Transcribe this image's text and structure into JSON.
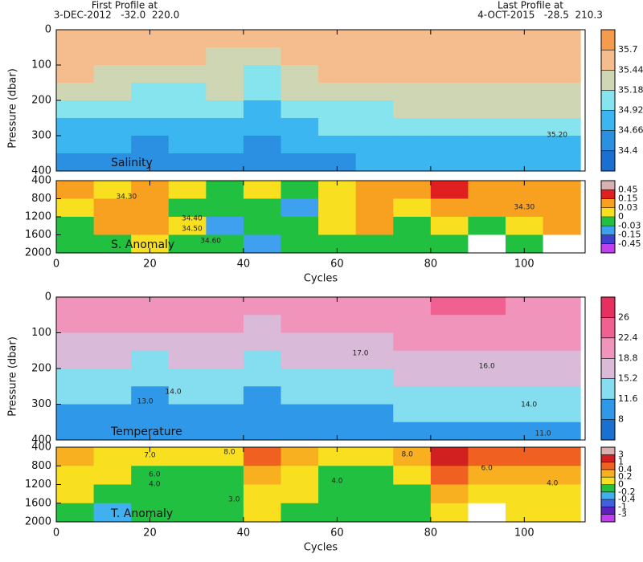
{
  "header": {
    "first_title": "First Profile at",
    "first_info": "3-DEC-2012   -32.0  220.0",
    "last_title": "Last Profile at",
    "last_info": "4-OCT-2015   -28.5  210.3"
  },
  "chart_data": [
    {
      "type": "heatmap",
      "label": "Salinity",
      "ylabel": "Pressure (dbar)",
      "x": [
        4,
        12,
        20,
        28,
        36,
        44,
        52,
        60,
        68,
        76,
        84,
        92,
        100,
        108
      ],
      "y": [
        25,
        75,
        125,
        175,
        225,
        275,
        325,
        375
      ],
      "z": [
        [
          35.55,
          35.5,
          35.45,
          35.3,
          35.1,
          34.9,
          34.75,
          34.6
        ],
        [
          35.6,
          35.55,
          35.4,
          35.2,
          35.0,
          34.85,
          34.7,
          34.6
        ],
        [
          35.6,
          35.5,
          35.35,
          35.15,
          34.95,
          34.8,
          34.65,
          34.55
        ],
        [
          35.55,
          35.45,
          35.3,
          35.15,
          35.0,
          34.85,
          34.7,
          34.6
        ],
        [
          35.5,
          35.4,
          35.3,
          35.2,
          35.05,
          34.9,
          34.75,
          34.65
        ],
        [
          35.45,
          35.3,
          35.1,
          34.95,
          34.8,
          34.7,
          34.6,
          34.5
        ],
        [
          35.6,
          35.5,
          35.4,
          35.2,
          35.0,
          34.85,
          34.7,
          34.6
        ],
        [
          35.6,
          35.55,
          35.45,
          35.3,
          35.1,
          34.95,
          34.8,
          34.65
        ],
        [
          35.55,
          35.5,
          35.45,
          35.3,
          35.15,
          34.95,
          34.8,
          34.7
        ],
        [
          35.6,
          35.55,
          35.5,
          35.35,
          35.2,
          35.0,
          34.85,
          34.7
        ],
        [
          35.65,
          35.6,
          35.5,
          35.4,
          35.2,
          35.05,
          34.9,
          34.75
        ],
        [
          35.6,
          35.55,
          35.5,
          35.4,
          35.25,
          35.1,
          34.9,
          34.75
        ],
        [
          35.55,
          35.5,
          35.5,
          35.4,
          35.25,
          35.05,
          34.9,
          34.75
        ],
        [
          35.55,
          35.5,
          35.45,
          35.35,
          35.2,
          35.05,
          34.9,
          34.8
        ]
      ],
      "xlim": [
        0,
        113
      ],
      "xticks": [
        0,
        20,
        40,
        60,
        80,
        100
      ],
      "ylim": [
        0,
        400
      ],
      "yticks": [
        0,
        100,
        200,
        300,
        400
      ],
      "colorbar": {
        "ticks": [
          34.4,
          34.66,
          34.92,
          35.18,
          35.44,
          35.7
        ],
        "colors": [
          "#1c6fd2",
          "#2b8fe2",
          "#3cb6f0",
          "#86e4ef",
          "#cfd6b4",
          "#f5bd8e",
          "#f59c4c"
        ]
      },
      "annotations": [
        {
          "text": "35.20",
          "x": 107,
          "y": 298
        }
      ]
    },
    {
      "type": "heatmap",
      "label": "S. Anomaly",
      "xlabel": "Cycles",
      "x": [
        4,
        12,
        20,
        28,
        36,
        44,
        52,
        60,
        68,
        76,
        84,
        92,
        100,
        108
      ],
      "y": [
        600,
        1000,
        1400,
        1800
      ],
      "z": [
        [
          0.03,
          0.01,
          -0.02,
          -0.01
        ],
        [
          0.02,
          0.05,
          0.04,
          -0.02
        ],
        [
          0.04,
          0.08,
          0.06,
          0.01
        ],
        [
          0.01,
          -0.01,
          0.02,
          -0.02
        ],
        [
          -0.01,
          -0.02,
          -0.04,
          -0.02
        ],
        [
          0.02,
          -0.01,
          -0.02,
          -0.04
        ],
        [
          -0.02,
          -0.04,
          -0.02,
          -0.03
        ],
        [
          0.01,
          0.02,
          0.01,
          -0.01
        ],
        [
          0.03,
          0.05,
          0.06,
          -0.01
        ],
        [
          0.04,
          0.02,
          -0.01,
          -0.02
        ],
        [
          0.2,
          0.05,
          0.02,
          -0.02
        ],
        [
          0.12,
          0.04,
          -0.01,
          null
        ],
        [
          0.1,
          0.06,
          0.02,
          -0.01
        ],
        [
          0.08,
          0.05,
          0.03,
          null
        ]
      ],
      "xlim": [
        0,
        113
      ],
      "xticks": [
        0,
        20,
        40,
        60,
        80,
        100
      ],
      "ylim": [
        400,
        2000
      ],
      "yticks": [
        400,
        800,
        1200,
        1600,
        2000
      ],
      "colorbar": {
        "ticks": [
          -0.45,
          -0.15,
          -0.03,
          0,
          0.03,
          0.15,
          0.45
        ],
        "colors": [
          "#c040f0",
          "#4040d0",
          "#40a0f0",
          "#22c040",
          "#f8e020",
          "#f8a020",
          "#e02020",
          "#d8b0b0"
        ]
      },
      "annotations": [
        {
          "text": "34.30",
          "x": 15,
          "y": 755
        },
        {
          "text": "34.40",
          "x": 29,
          "y": 1235
        },
        {
          "text": "34.50",
          "x": 29,
          "y": 1467
        },
        {
          "text": "34.60",
          "x": 33,
          "y": 1733
        },
        {
          "text": "34.30",
          "x": 100,
          "y": 987
        }
      ]
    },
    {
      "type": "heatmap",
      "label": "Temperature",
      "ylabel": "Pressure (dbar)",
      "x": [
        4,
        12,
        20,
        28,
        36,
        44,
        52,
        60,
        68,
        76,
        84,
        92,
        100,
        108
      ],
      "y": [
        25,
        75,
        125,
        175,
        225,
        275,
        325,
        375
      ],
      "z": [
        [
          21,
          19.5,
          17.5,
          15.5,
          14,
          12.5,
          11,
          10
        ],
        [
          21.5,
          20,
          18,
          16,
          14,
          12,
          10.5,
          9.5
        ],
        [
          21,
          19.5,
          17,
          15,
          13,
          11.5,
          10,
          9
        ],
        [
          20.5,
          19,
          17.5,
          16,
          14,
          12.5,
          11,
          10
        ],
        [
          21,
          19.5,
          18,
          16.5,
          14.5,
          13,
          11.5,
          10
        ],
        [
          19.5,
          18,
          16,
          14,
          12,
          10.5,
          9.5,
          8.5
        ],
        [
          21,
          19.5,
          18,
          16,
          14,
          12,
          10.5,
          9.5
        ],
        [
          20.5,
          19.5,
          18,
          16.5,
          14.5,
          12.5,
          11,
          10
        ],
        [
          21,
          20,
          18.5,
          17,
          15,
          13,
          11.5,
          10.5
        ],
        [
          21.5,
          20.5,
          19,
          17.5,
          15.5,
          13.5,
          12,
          10.5
        ],
        [
          23.5,
          21.5,
          19.5,
          17.5,
          15.5,
          14,
          12.5,
          11
        ],
        [
          23,
          21,
          19.5,
          17.5,
          16,
          14,
          12.5,
          11
        ],
        [
          22,
          21,
          19.5,
          17.5,
          15.5,
          14,
          12.5,
          11
        ],
        [
          21.5,
          20.5,
          19,
          17,
          15.5,
          13.5,
          12,
          11
        ]
      ],
      "xlim": [
        0,
        113
      ],
      "xticks": [
        0,
        20,
        40,
        60,
        80,
        100
      ],
      "ylim": [
        0,
        400
      ],
      "yticks": [
        0,
        100,
        200,
        300,
        400
      ],
      "colorbar": {
        "ticks": [
          8,
          11.6,
          15.2,
          18.8,
          22.4,
          26
        ],
        "colors": [
          "#1a70d0",
          "#2f98e8",
          "#84def0",
          "#d9bad8",
          "#f094bb",
          "#f06090",
          "#e83060"
        ]
      },
      "annotations": [
        {
          "text": "17.0",
          "x": 65,
          "y": 157
        },
        {
          "text": "16.0",
          "x": 92,
          "y": 193
        },
        {
          "text": "14.0",
          "x": 25,
          "y": 265
        },
        {
          "text": "13.0",
          "x": 19,
          "y": 292
        },
        {
          "text": "14.0",
          "x": 101,
          "y": 301
        },
        {
          "text": "11.0",
          "x": 104,
          "y": 382
        }
      ]
    },
    {
      "type": "heatmap",
      "label": "T. Anomaly",
      "xlabel": "Cycles",
      "x": [
        4,
        12,
        20,
        28,
        36,
        44,
        52,
        60,
        68,
        76,
        84,
        92,
        100,
        108
      ],
      "y": [
        600,
        1000,
        1400,
        1800
      ],
      "z": [
        [
          0.3,
          0.1,
          0.05,
          -0.1
        ],
        [
          0.1,
          0.05,
          -0.1,
          -0.3
        ],
        [
          0.1,
          -0.1,
          -0.1,
          -0.15
        ],
        [
          0.05,
          -0.1,
          -0.1,
          -0.15
        ],
        [
          0.1,
          -0.05,
          -0.1,
          -0.1
        ],
        [
          0.5,
          0.3,
          0.1,
          0.05
        ],
        [
          0.2,
          0.1,
          0.05,
          -0.05
        ],
        [
          0.1,
          -0.05,
          -0.1,
          -0.1
        ],
        [
          0.1,
          -0.1,
          -0.1,
          -0.15
        ],
        [
          0.3,
          0.1,
          -0.05,
          -0.1
        ],
        [
          1.2,
          0.5,
          0.3,
          0.1
        ],
        [
          0.8,
          0.3,
          0.1,
          null
        ],
        [
          0.6,
          0.3,
          0.1,
          0.1
        ],
        [
          0.4,
          0.2,
          0.1,
          0.05
        ]
      ],
      "xlim": [
        0,
        113
      ],
      "xticks": [
        0,
        20,
        40,
        60,
        80,
        100
      ],
      "ylim": [
        400,
        2000
      ],
      "yticks": [
        400,
        800,
        1200,
        1600,
        2000
      ],
      "colorbar": {
        "ticks": [
          -3,
          -1,
          -0.4,
          -0.2,
          0,
          0.2,
          0.4,
          1,
          3
        ],
        "colors": [
          "#c040f0",
          "#6020c0",
          "#4060e0",
          "#40b0f0",
          "#22c040",
          "#f8e020",
          "#f8b020",
          "#f06020",
          "#d02020",
          "#d8b0b0"
        ]
      },
      "annotations": [
        {
          "text": "7.0",
          "x": 20,
          "y": 572
        },
        {
          "text": "8.0",
          "x": 37,
          "y": 503
        },
        {
          "text": "6.0",
          "x": 21,
          "y": 985
        },
        {
          "text": "4.0",
          "x": 21,
          "y": 1191
        },
        {
          "text": "3.0",
          "x": 38,
          "y": 1518
        },
        {
          "text": "4.0",
          "x": 60,
          "y": 1123
        },
        {
          "text": "8.0",
          "x": 75,
          "y": 555
        },
        {
          "text": "6.0",
          "x": 92,
          "y": 847
        },
        {
          "text": "4.0",
          "x": 106,
          "y": 1174
        }
      ]
    }
  ]
}
